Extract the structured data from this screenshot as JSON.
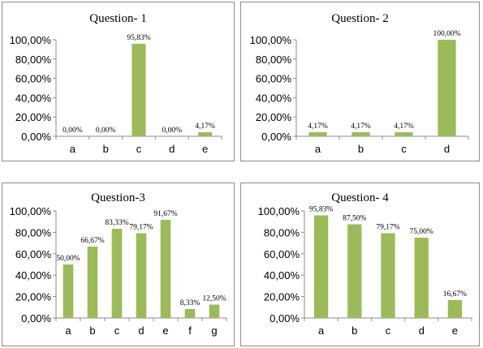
{
  "chart_data": [
    {
      "type": "bar",
      "title": "Question- 1",
      "categories": [
        "a",
        "b",
        "c",
        "d",
        "e"
      ],
      "values": [
        0.0,
        0.0,
        95.83,
        0.0,
        4.17
      ],
      "data_labels": [
        "0,00%",
        "0,00%",
        "95,83%",
        "0,00%",
        "4,17%"
      ],
      "yticks": [
        "0,00%",
        "20,00%",
        "40,00%",
        "60,00%",
        "80,00%",
        "100,00%"
      ],
      "ylim": [
        0,
        100
      ],
      "grid": false,
      "color": "#9bbb59"
    },
    {
      "type": "bar",
      "title": "Question- 2",
      "categories": [
        "a",
        "b",
        "c",
        "d"
      ],
      "values": [
        4.17,
        4.17,
        4.17,
        100.0
      ],
      "data_labels": [
        "4,17%",
        "4,17%",
        "4,17%",
        "100,00%"
      ],
      "yticks": [
        "0,00%",
        "20,00%",
        "40,00%",
        "60,00%",
        "80,00%",
        "100,00%"
      ],
      "ylim": [
        0,
        100
      ],
      "grid": false,
      "color": "#9bbb59"
    },
    {
      "type": "bar",
      "title": "Question-3",
      "categories": [
        "a",
        "b",
        "c",
        "d",
        "e",
        "f",
        "g"
      ],
      "values": [
        50.0,
        66.67,
        83.33,
        79.17,
        91.67,
        8.33,
        12.5
      ],
      "data_labels": [
        "50,00%",
        "66,67%",
        "83,33%",
        "79,17%",
        "91,67%",
        "8,33%",
        "12,50%"
      ],
      "yticks": [
        "0,00%",
        "20,00%",
        "40,00%",
        "60,00%",
        "80,00%",
        "100,00%"
      ],
      "ylim": [
        0,
        100
      ],
      "grid": false,
      "color": "#9bbb59"
    },
    {
      "type": "bar",
      "title": "Question- 4",
      "categories": [
        "a",
        "b",
        "c",
        "d",
        "e"
      ],
      "values": [
        95.83,
        87.5,
        79.17,
        75.0,
        16.67
      ],
      "data_labels": [
        "95,83%",
        "87,50%",
        "79,17%",
        "75,00%",
        "16,67%"
      ],
      "yticks": [
        "0,00%",
        "20,00%",
        "40,00%",
        "60,00%",
        "80,00%",
        "100,00%"
      ],
      "ylim": [
        0,
        100
      ],
      "grid": false,
      "color": "#9bbb59"
    }
  ]
}
